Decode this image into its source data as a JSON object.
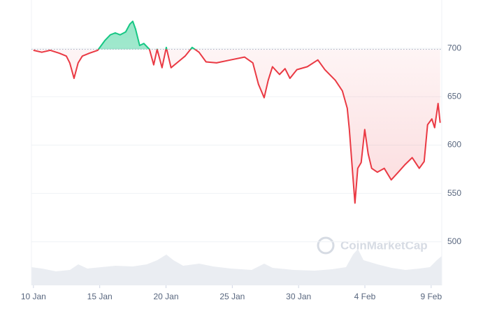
{
  "chart_data": {
    "type": "line",
    "watermark": "CoinMarketCap",
    "x": [
      0,
      0.63,
      1.27,
      1.95,
      2.48,
      2.74,
      3.06,
      3.37,
      3.69,
      4.22,
      4.85,
      5.38,
      5.8,
      6.17,
      6.54,
      6.96,
      7.27,
      7.49,
      7.7,
      8.01,
      8.33,
      8.75,
      9.07,
      9.33,
      9.7,
      10.02,
      10.38,
      10.91,
      11.44,
      11.97,
      12.49,
      13.02,
      13.81,
      14.87,
      15.92,
      16.55,
      16.97,
      17.4,
      17.71,
      18.03,
      18.56,
      18.98,
      19.35,
      19.87,
      20.66,
      21.45,
      21.98,
      22.77,
      23.3,
      23.67,
      23.83,
      24.09,
      24.25,
      24.46,
      24.72,
      24.99,
      25.25,
      25.51,
      25.94,
      26.46,
      26.99,
      27.52,
      28.04,
      28.57,
      29.1,
      29.47,
      29.73,
      30.05,
      30.26,
      30.52,
      30.68
    ],
    "values": [
      698,
      696,
      698,
      695,
      692,
      685,
      669,
      685,
      692,
      695,
      698,
      708,
      714,
      716,
      714,
      717,
      725,
      728,
      720,
      703,
      705,
      699,
      683,
      699,
      680,
      701,
      680,
      686,
      692,
      701,
      696,
      686,
      685,
      688,
      691,
      685,
      663,
      649,
      667,
      681,
      673,
      679,
      669,
      678,
      681,
      688,
      678,
      667,
      656,
      638,
      616,
      569,
      540,
      576,
      582,
      616,
      591,
      576,
      572,
      576,
      564,
      572,
      580,
      587,
      576,
      583,
      621,
      627,
      618,
      643,
      623
    ],
    "baseline": 699,
    "up_color": "#16c784",
    "down_color": "#ea3943",
    "xlim": [
      -0.15,
      30.8
    ],
    "xticks": [
      {
        "value": 0,
        "label": "10 Jan"
      },
      {
        "value": 5,
        "label": "15 Jan"
      },
      {
        "value": 10,
        "label": "20 Jan"
      },
      {
        "value": 15,
        "label": "25 Jan"
      },
      {
        "value": 20,
        "label": "30 Jan"
      },
      {
        "value": 25,
        "label": "4 Feb"
      },
      {
        "value": 30,
        "label": "9 Feb"
      }
    ],
    "ylim": [
      455,
      750
    ],
    "yticks": [
      500,
      550,
      600,
      650,
      700
    ],
    "grid": true
  }
}
